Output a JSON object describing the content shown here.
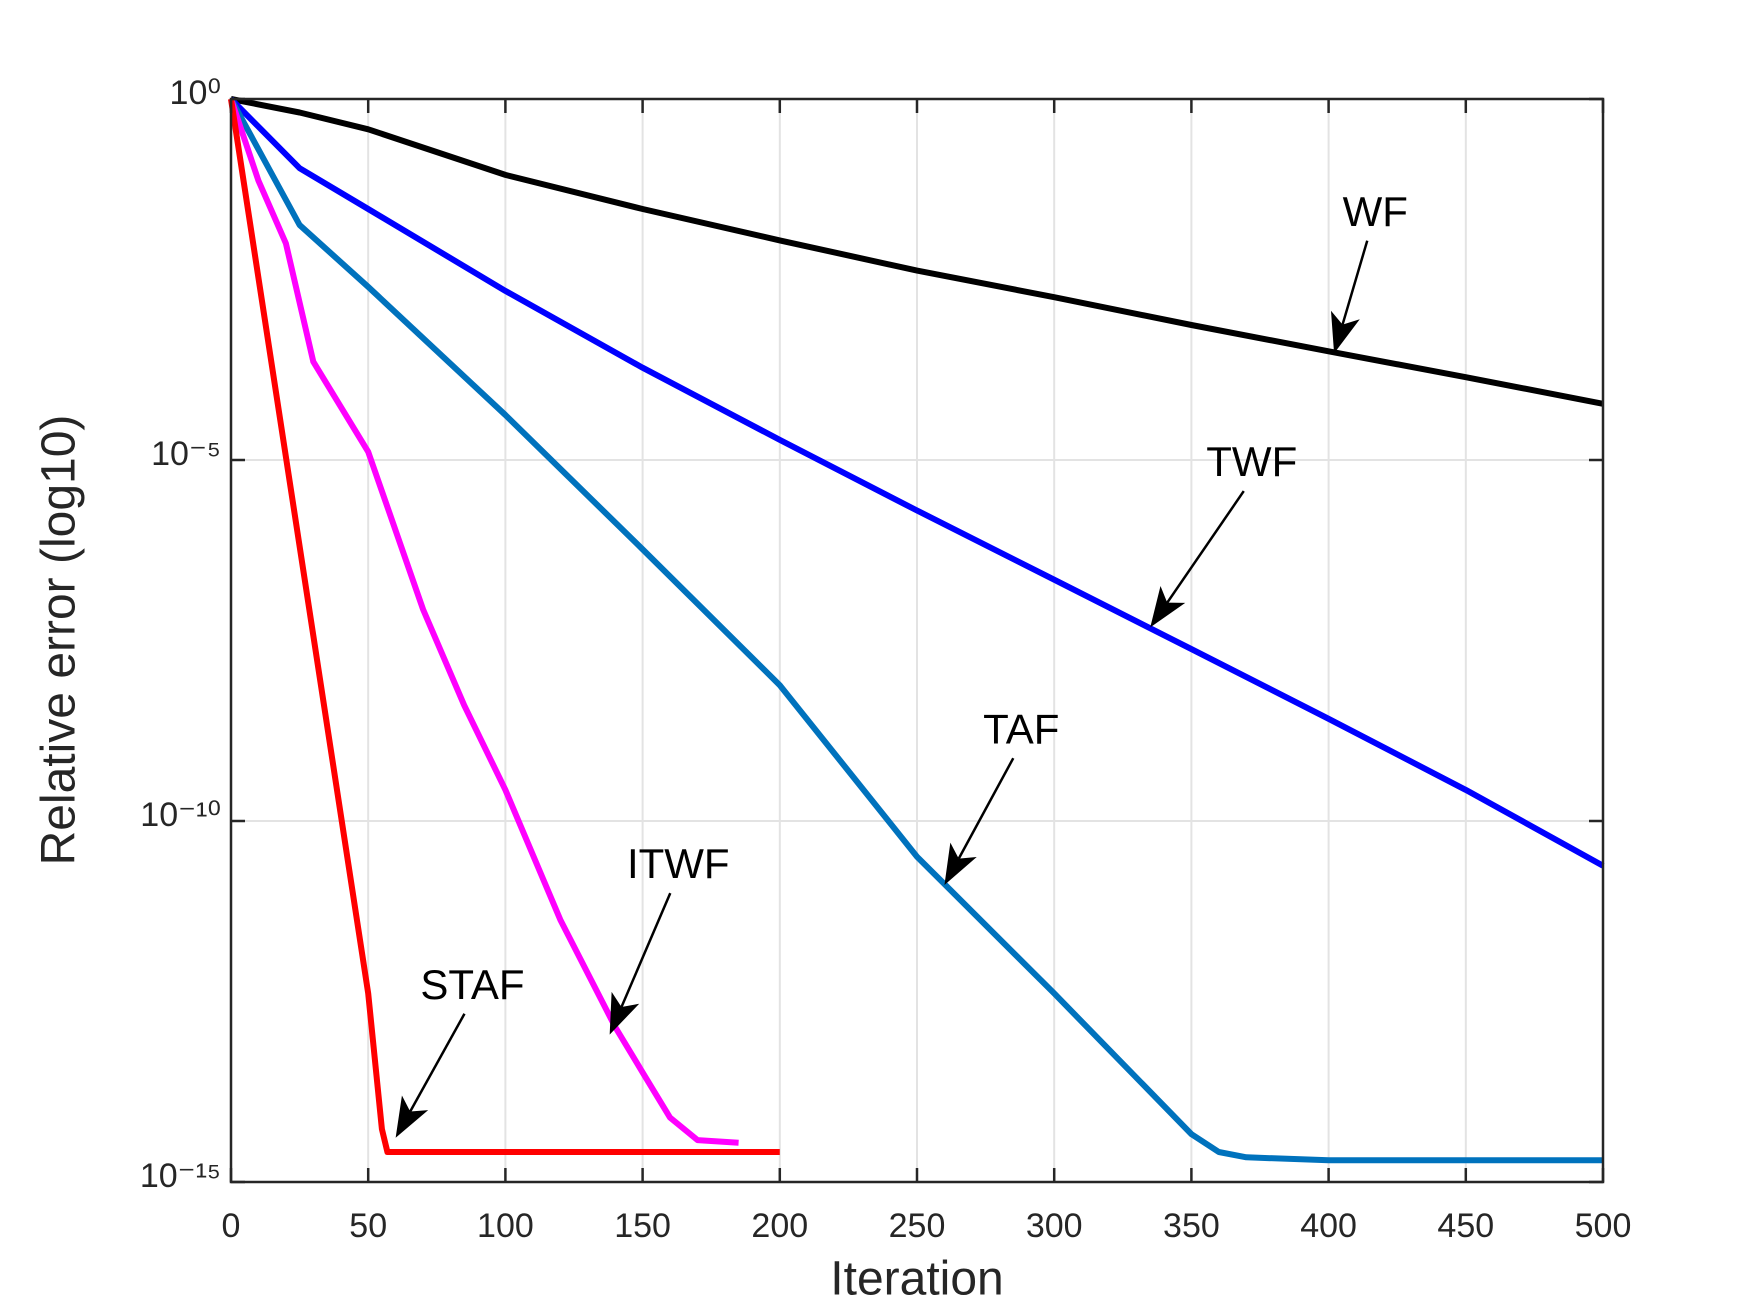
{
  "chart_data": {
    "type": "line",
    "x_label": "Iteration",
    "y_label": "Relative error (log10)",
    "xlim": [
      0,
      500
    ],
    "xticks": [
      0,
      50,
      100,
      150,
      200,
      250,
      300,
      350,
      400,
      450,
      500
    ],
    "ylim": [
      1e-15,
      1
    ],
    "yticks": [
      {
        "value": 1e-15,
        "label": "10⁻¹⁵"
      },
      {
        "value": 1e-10,
        "label": "10⁻¹⁰"
      },
      {
        "value": 1e-05,
        "label": "10⁻⁵"
      },
      {
        "value": 1,
        "label": "10⁰"
      }
    ],
    "y_log": true,
    "grid": true,
    "series": [
      {
        "name": "WF",
        "color": "#000000",
        "x": [
          0,
          25,
          50,
          100,
          150,
          200,
          250,
          300,
          350,
          400,
          450,
          500
        ],
        "values": [
          1,
          0.65,
          0.38,
          0.089,
          0.03,
          0.011,
          0.0042,
          0.0018,
          0.00074,
          0.00032,
          0.00014,
          6e-05
        ]
      },
      {
        "name": "TWF",
        "color": "#0000ff",
        "x": [
          0,
          25,
          50,
          100,
          150,
          200,
          250,
          300,
          350,
          400,
          450,
          500
        ],
        "values": [
          1,
          0.11,
          0.03,
          0.0022,
          0.00019,
          1.9e-05,
          2e-06,
          2.2e-07,
          2.4e-08,
          2.6e-09,
          2.7e-10,
          2.4e-11
        ]
      },
      {
        "name": "TAF",
        "color": "#0072bd",
        "x": [
          0,
          25,
          50,
          100,
          150,
          200,
          250,
          300,
          350,
          360,
          370,
          400,
          450,
          500
        ],
        "values": [
          1,
          0.018,
          0.0025,
          4.2e-05,
          5.8e-07,
          7.6e-09,
          3.2e-11,
          4.1e-13,
          4.6e-15,
          2.6e-15,
          2.2e-15,
          2e-15,
          2e-15,
          2e-15
        ]
      },
      {
        "name": "ITWF",
        "color": "#ff00ff",
        "x": [
          0,
          10,
          20,
          30,
          50,
          70,
          85,
          100,
          120,
          140,
          150,
          160,
          170,
          185
        ],
        "values": [
          1,
          0.074,
          0.01,
          0.00023,
          1.3e-05,
          8.5e-08,
          4e-09,
          2.7e-10,
          4.3e-12,
          1.4e-13,
          3.3e-14,
          7.8e-15,
          3.8e-15,
          3.5e-15
        ]
      },
      {
        "name": "STAF",
        "color": "#ff0000",
        "x": [
          0,
          50,
          55,
          57,
          100,
          150,
          200
        ],
        "values": [
          1,
          4.1e-13,
          5.4e-15,
          2.6e-15,
          2.6e-15,
          2.6e-15,
          2.6e-15
        ]
      }
    ],
    "annotations": [
      {
        "text": "WF",
        "x": 402,
        "y": 0.0003,
        "text_x": 417,
        "text_y": 0.025
      },
      {
        "text": "TWF",
        "x": 335,
        "y": 4.8e-08,
        "text_x": 372,
        "text_y": 8.5e-06
      },
      {
        "text": "TAF",
        "x": 260,
        "y": 1.3e-11,
        "text_x": 288,
        "text_y": 1.7e-09
      },
      {
        "text": "ITWF",
        "x": 138,
        "y": 1.1e-13,
        "text_x": 163,
        "text_y": 2.3e-11
      },
      {
        "text": "STAF",
        "x": 60,
        "y": 4.1e-15,
        "text_x": 88,
        "text_y": 4.9e-13
      }
    ]
  }
}
